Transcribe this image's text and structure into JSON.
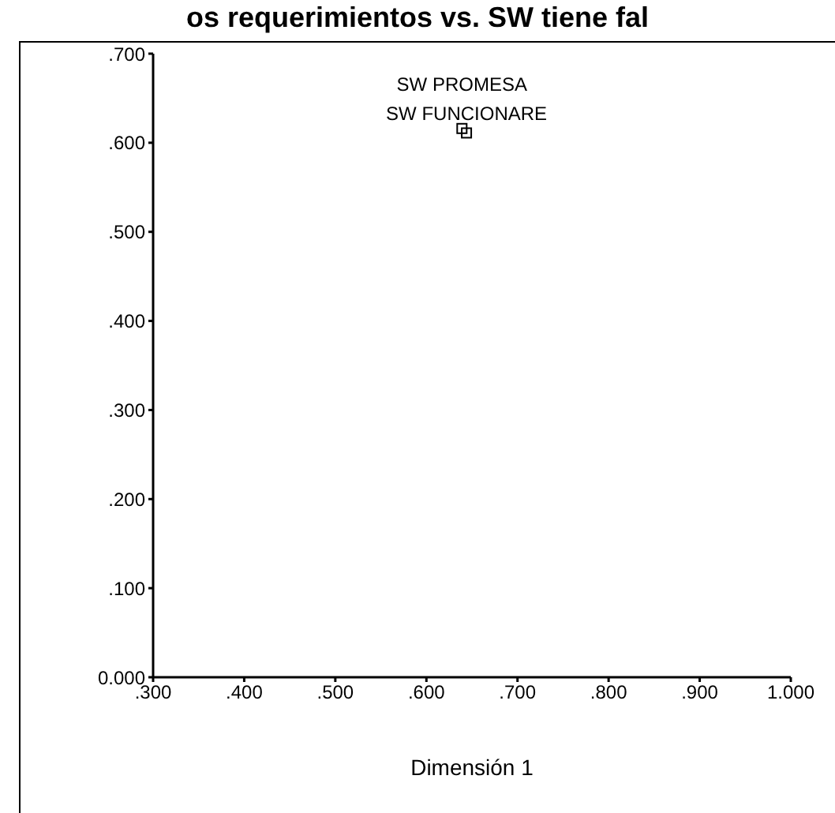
{
  "chart_data": {
    "type": "scatter",
    "title": "os requerimientos vs. SW tiene fal",
    "xlabel": "Dimensión 1",
    "series": [
      {
        "color": "#000000",
        "x": [
          0.639,
          0.644
        ],
        "values": [
          0.616,
          0.611
        ]
      }
    ],
    "marker": "square",
    "grid": false,
    "legend": false,
    "xlim": [
      0.3,
      1.0
    ],
    "xticks": [
      {
        "value": 0.3,
        "label": ".300"
      },
      {
        "value": 0.4,
        "label": ".400"
      },
      {
        "value": 0.5,
        "label": ".500"
      },
      {
        "value": 0.6,
        "label": ".600"
      },
      {
        "value": 0.7,
        "label": ".700"
      },
      {
        "value": 0.8,
        "label": ".800"
      },
      {
        "value": 0.9,
        "label": ".900"
      },
      {
        "value": 1.0,
        "label": "1.000"
      }
    ],
    "ylim": [
      0,
      0.7
    ],
    "yticks": [
      {
        "value": 0,
        "label": "0.000"
      },
      {
        "value": 0.1,
        "label": ".100"
      },
      {
        "value": 0.2,
        "label": ".200"
      },
      {
        "value": 0.3,
        "label": ".300"
      },
      {
        "value": 0.4,
        "label": ".400"
      },
      {
        "value": 0.5,
        "label": ".500"
      },
      {
        "value": 0.6,
        "label": ".600"
      },
      {
        "value": 0.7,
        "label": ".700"
      }
    ],
    "annotations": [
      {
        "text": "SW PROMESA",
        "x": 0.639,
        "y": 0.616
      },
      {
        "text": "SW FUNCIONARE",
        "x": 0.644,
        "y": 0.611
      }
    ]
  }
}
